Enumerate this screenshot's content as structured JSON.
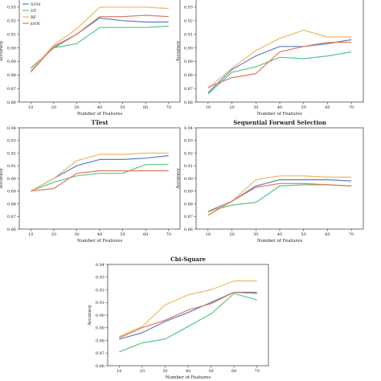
{
  "colors": {
    "SVM": "#5b7fc4",
    "DT": "#5cc48a",
    "RF": "#f0b868",
    "kNN": "#e0785c",
    "axis": "#333333"
  },
  "chart_data": [
    {
      "type": "line",
      "title": "",
      "xlabel": "Number of Features",
      "ylabel": "Accuracy",
      "x": [
        10,
        20,
        30,
        40,
        50,
        60,
        70
      ],
      "xticks": [
        "10",
        "20",
        "30",
        "40",
        "50",
        "60",
        "70"
      ],
      "ylim": [
        0.86,
        0.94
      ],
      "yticks": [
        "0.86",
        "0.87",
        "0.88",
        "0.89",
        "0.90",
        "0.91",
        "0.92",
        "0.93"
      ],
      "grid": false,
      "legend": "top-left",
      "series": [
        {
          "name": "SVM",
          "color": "#5b7fc4",
          "values": [
            0.885,
            0.9,
            0.91,
            0.922,
            0.92,
            0.919,
            0.919
          ]
        },
        {
          "name": "DT",
          "color": "#5cc48a",
          "values": [
            0.885,
            0.9,
            0.903,
            0.915,
            0.915,
            0.915,
            0.916
          ]
        },
        {
          "name": "RF",
          "color": "#f0b868",
          "values": [
            0.883,
            0.902,
            0.914,
            0.93,
            0.93,
            0.93,
            0.929
          ]
        },
        {
          "name": "kNN",
          "color": "#e0785c",
          "values": [
            0.882,
            0.901,
            0.91,
            0.923,
            0.923,
            0.924,
            0.923
          ]
        }
      ]
    },
    {
      "type": "line",
      "title": "",
      "xlabel": "Number of Features",
      "ylabel": "Accuracy",
      "x": [
        10,
        20,
        30,
        40,
        50,
        60,
        70
      ],
      "xticks": [
        "10",
        "20",
        "30",
        "40",
        "50",
        "60",
        "70"
      ],
      "ylim": [
        0.86,
        0.94
      ],
      "yticks": [
        "0.86",
        "0.87",
        "0.88",
        "0.89",
        "0.90",
        "0.91",
        "0.92",
        "0.93"
      ],
      "grid": false,
      "series": [
        {
          "name": "SVM",
          "color": "#5b7fc4",
          "values": [
            0.867,
            0.884,
            0.894,
            0.901,
            0.901,
            0.903,
            0.906
          ]
        },
        {
          "name": "DT",
          "color": "#5cc48a",
          "values": [
            0.866,
            0.882,
            0.886,
            0.893,
            0.892,
            0.894,
            0.897
          ]
        },
        {
          "name": "RF",
          "color": "#f0b868",
          "values": [
            0.87,
            0.885,
            0.898,
            0.907,
            0.913,
            0.908,
            0.908
          ]
        },
        {
          "name": "kNN",
          "color": "#e0785c",
          "values": [
            0.871,
            0.878,
            0.881,
            0.897,
            0.901,
            0.904,
            0.904
          ]
        }
      ]
    },
    {
      "type": "line",
      "title": "TTest",
      "xlabel": "Number of Features",
      "ylabel": "Accuracy",
      "x": [
        10,
        20,
        30,
        40,
        50,
        60,
        70
      ],
      "xticks": [
        "10",
        "20",
        "30",
        "40",
        "50",
        "60",
        "70"
      ],
      "ylim": [
        0.86,
        0.94
      ],
      "yticks": [
        "0.86",
        "0.87",
        "0.88",
        "0.89",
        "0.90",
        "0.91",
        "0.92",
        "0.93",
        "0.94"
      ],
      "grid": false,
      "series": [
        {
          "name": "SVM",
          "color": "#5b7fc4",
          "values": [
            0.89,
            0.9,
            0.91,
            0.915,
            0.915,
            0.916,
            0.918
          ]
        },
        {
          "name": "DT",
          "color": "#5cc48a",
          "values": [
            0.89,
            0.897,
            0.902,
            0.904,
            0.904,
            0.911,
            0.911
          ]
        },
        {
          "name": "RF",
          "color": "#f0b868",
          "values": [
            0.89,
            0.9,
            0.914,
            0.919,
            0.919,
            0.92,
            0.92
          ]
        },
        {
          "name": "kNN",
          "color": "#e0785c",
          "values": [
            0.89,
            0.892,
            0.904,
            0.906,
            0.906,
            0.906,
            0.906
          ]
        }
      ]
    },
    {
      "type": "line",
      "title": "Sequential Forward Selection",
      "xlabel": "Number of Features",
      "ylabel": "Accuracy",
      "x": [
        10,
        20,
        30,
        40,
        50,
        60,
        70
      ],
      "xticks": [
        "10",
        "20",
        "30",
        "40",
        "50",
        "60",
        "70"
      ],
      "ylim": [
        0.86,
        0.94
      ],
      "yticks": [
        "0.86",
        "0.87",
        "0.88",
        "0.89",
        "0.90",
        "0.91",
        "0.92",
        "0.93",
        "0.94"
      ],
      "grid": false,
      "series": [
        {
          "name": "SVM",
          "color": "#5b7fc4",
          "values": [
            0.874,
            0.882,
            0.894,
            0.899,
            0.899,
            0.899,
            0.898
          ]
        },
        {
          "name": "DT",
          "color": "#5cc48a",
          "values": [
            0.874,
            0.879,
            0.881,
            0.894,
            0.895,
            0.895,
            0.894
          ]
        },
        {
          "name": "RF",
          "color": "#f0b868",
          "values": [
            0.873,
            0.882,
            0.899,
            0.902,
            0.902,
            0.901,
            0.901
          ]
        },
        {
          "name": "kNN",
          "color": "#e0785c",
          "values": [
            0.871,
            0.882,
            0.893,
            0.896,
            0.896,
            0.895,
            0.894
          ]
        }
      ]
    },
    {
      "type": "line",
      "title": "Chi-Square",
      "xlabel": "Number of Features",
      "ylabel": "Accuracy",
      "x": [
        10,
        20,
        30,
        40,
        50,
        60,
        70
      ],
      "xticks": [
        "10",
        "20",
        "30",
        "40",
        "50",
        "60",
        "70"
      ],
      "ylim": [
        0.86,
        0.94
      ],
      "yticks": [
        "0.86",
        "0.87",
        "0.88",
        "0.89",
        "0.90",
        "0.91",
        "0.92",
        "0.93",
        "0.94"
      ],
      "grid": false,
      "series": [
        {
          "name": "SVM",
          "color": "#5b7fc4",
          "values": [
            0.881,
            0.886,
            0.895,
            0.902,
            0.91,
            0.918,
            0.918
          ]
        },
        {
          "name": "DT",
          "color": "#5cc48a",
          "values": [
            0.871,
            0.878,
            0.881,
            0.891,
            0.901,
            0.917,
            0.912
          ]
        },
        {
          "name": "RF",
          "color": "#f0b868",
          "values": [
            0.883,
            0.891,
            0.908,
            0.916,
            0.92,
            0.927,
            0.927
          ]
        },
        {
          "name": "kNN",
          "color": "#e0785c",
          "values": [
            0.882,
            0.89,
            0.896,
            0.904,
            0.909,
            0.918,
            0.917
          ]
        }
      ]
    }
  ]
}
